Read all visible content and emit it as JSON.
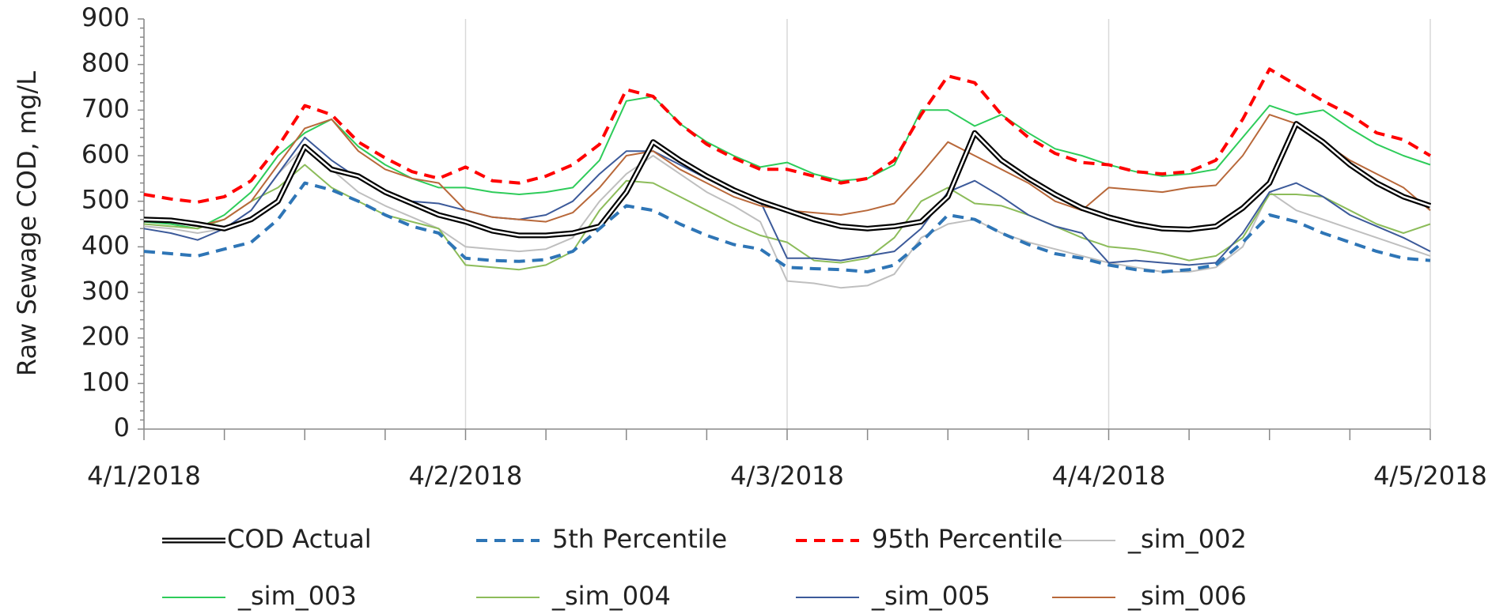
{
  "chart_data": {
    "type": "line",
    "y_label": "Raw Sewage COD, mg/L",
    "categories": [
      "4/1/2018",
      null,
      null,
      null,
      null,
      null,
      null,
      null,
      null,
      null,
      null,
      null,
      "4/2/2018",
      null,
      null,
      null,
      null,
      null,
      null,
      null,
      null,
      null,
      null,
      null,
      "4/3/2018",
      null,
      null,
      null,
      null,
      null,
      null,
      null,
      null,
      null,
      null,
      null,
      "4/4/2018",
      null,
      null,
      null,
      null,
      null,
      null,
      null,
      null,
      null,
      null,
      null,
      "4/5/2018"
    ],
    "ylim": [
      0,
      900
    ],
    "yticks": [
      0,
      100,
      200,
      300,
      400,
      500,
      600,
      700,
      800,
      900
    ],
    "grid": "x",
    "legend": "bottom",
    "series": [
      {
        "name": "COD Actual",
        "color": "#000000",
        "style": "double",
        "values": [
          460,
          458,
          450,
          440,
          460,
          500,
          620,
          570,
          555,
          520,
          495,
          470,
          455,
          435,
          425,
          425,
          430,
          445,
          520,
          630,
          590,
          555,
          525,
          500,
          480,
          460,
          445,
          440,
          445,
          455,
          510,
          650,
          590,
          550,
          515,
          485,
          465,
          450,
          440,
          438,
          445,
          485,
          540,
          670,
          630,
          580,
          540,
          510,
          490
        ]
      },
      {
        "name": "5th Percentile",
        "color": "#2e75b6",
        "style": "dashed",
        "values": [
          390,
          385,
          380,
          395,
          410,
          460,
          540,
          525,
          500,
          470,
          445,
          430,
          375,
          370,
          368,
          372,
          390,
          440,
          490,
          480,
          450,
          425,
          405,
          395,
          355,
          352,
          350,
          345,
          360,
          410,
          470,
          460,
          430,
          405,
          385,
          375,
          360,
          350,
          345,
          350,
          360,
          410,
          470,
          455,
          430,
          410,
          390,
          375,
          370
        ]
      },
      {
        "name": "95th Percentile",
        "color": "#ff0000",
        "style": "dashed",
        "values": [
          515,
          505,
          498,
          510,
          545,
          620,
          710,
          690,
          630,
          595,
          565,
          550,
          575,
          545,
          540,
          555,
          580,
          625,
          745,
          730,
          670,
          625,
          595,
          570,
          570,
          555,
          540,
          550,
          590,
          690,
          775,
          760,
          690,
          640,
          605,
          585,
          580,
          565,
          560,
          565,
          590,
          680,
          790,
          755,
          720,
          690,
          650,
          635,
          600
        ]
      },
      {
        "name": "_sim_002",
        "color": "#bfbfbf",
        "style": "solid",
        "values": [
          445,
          440,
          430,
          440,
          480,
          560,
          620,
          570,
          520,
          490,
          465,
          440,
          400,
          395,
          390,
          395,
          420,
          500,
          560,
          600,
          560,
          520,
          490,
          455,
          325,
          320,
          310,
          315,
          340,
          420,
          450,
          460,
          430,
          410,
          395,
          380,
          365,
          355,
          345,
          345,
          355,
          400,
          520,
          480,
          460,
          440,
          420,
          400,
          380
        ]
      },
      {
        "name": "_sim_003",
        "color": "#2ecc5a",
        "style": "solid",
        "values": [
          455,
          450,
          440,
          470,
          520,
          600,
          650,
          680,
          620,
          580,
          550,
          530,
          530,
          520,
          515,
          520,
          530,
          590,
          720,
          730,
          670,
          630,
          600,
          575,
          585,
          560,
          545,
          550,
          580,
          700,
          700,
          665,
          690,
          650,
          615,
          600,
          580,
          565,
          555,
          560,
          570,
          640,
          710,
          690,
          700,
          660,
          625,
          600,
          580
        ]
      },
      {
        "name": "_sim_004",
        "color": "#8cbc5a",
        "style": "solid",
        "values": [
          450,
          445,
          440,
          460,
          500,
          530,
          580,
          530,
          500,
          470,
          455,
          440,
          360,
          355,
          350,
          360,
          390,
          480,
          545,
          540,
          510,
          480,
          450,
          425,
          410,
          370,
          365,
          375,
          420,
          500,
          530,
          495,
          490,
          470,
          445,
          420,
          400,
          395,
          385,
          370,
          380,
          420,
          515,
          515,
          510,
          480,
          450,
          430,
          450
        ]
      },
      {
        "name": "_sim_005",
        "color": "#3c5a9a",
        "style": "solid",
        "values": [
          440,
          430,
          415,
          440,
          480,
          560,
          640,
          590,
          550,
          520,
          500,
          495,
          480,
          465,
          460,
          470,
          500,
          560,
          610,
          610,
          580,
          550,
          520,
          500,
          375,
          375,
          370,
          380,
          390,
          440,
          520,
          545,
          510,
          470,
          445,
          430,
          365,
          370,
          365,
          360,
          365,
          430,
          520,
          540,
          510,
          470,
          445,
          420,
          390
        ]
      },
      {
        "name": "_sim_006",
        "color": "#b8683a",
        "style": "solid",
        "values": [
          460,
          455,
          445,
          460,
          500,
          580,
          660,
          680,
          610,
          570,
          550,
          540,
          480,
          465,
          460,
          455,
          475,
          530,
          600,
          610,
          570,
          540,
          510,
          490,
          480,
          475,
          470,
          480,
          495,
          560,
          630,
          600,
          570,
          540,
          500,
          480,
          530,
          525,
          520,
          530,
          535,
          600,
          690,
          670,
          630,
          590,
          560,
          530,
          480
        ]
      }
    ]
  }
}
